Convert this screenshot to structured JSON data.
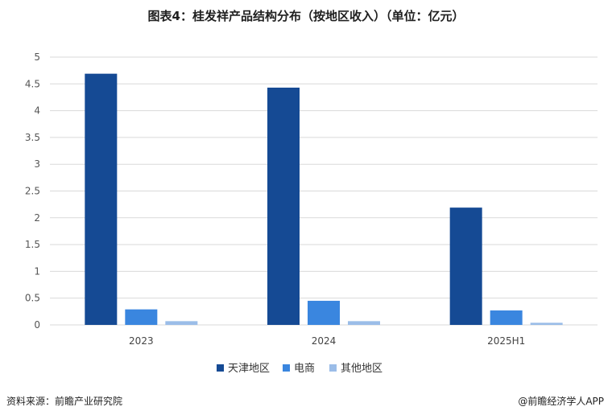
{
  "header": {
    "title": "图表4：桂发祥产品结构分布（按地区收入）（单位：亿元）"
  },
  "footer": {
    "source": "资料来源：前瞻产业研究院",
    "credit": "@前瞻经济学人APP"
  },
  "colors": {
    "tianjin": "#154a94",
    "ecommerce": "#3a86df",
    "other": "#9bbde8",
    "grid": "#d9d9d9"
  },
  "chart_data": {
    "type": "bar",
    "categories": [
      "2023",
      "2024",
      "2025H1"
    ],
    "series": [
      {
        "name": "天津地区",
        "values": [
          4.69,
          4.43,
          2.19
        ]
      },
      {
        "name": "电商",
        "values": [
          0.29,
          0.45,
          0.27
        ]
      },
      {
        "name": "其他地区",
        "values": [
          0.07,
          0.07,
          0.04
        ]
      }
    ],
    "y_ticks": [
      "0",
      "0.5",
      "1",
      "1.5",
      "2",
      "2.5",
      "3",
      "3.5",
      "4",
      "4.5",
      "5"
    ],
    "ylim": [
      0,
      5
    ],
    "grid": true,
    "legend_position": "bottom"
  }
}
